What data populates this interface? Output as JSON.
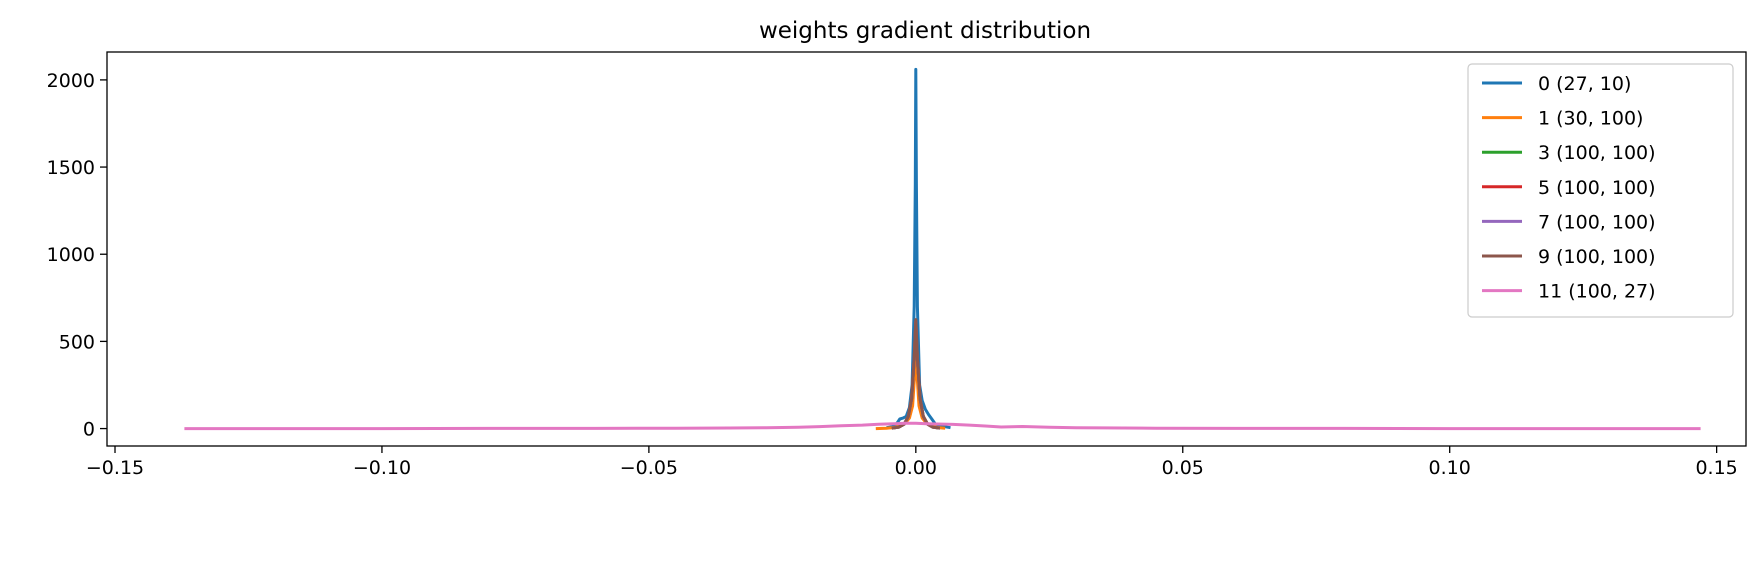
{
  "chart_data": {
    "type": "line",
    "title": "weights gradient distribution",
    "xlabel": "",
    "ylabel": "",
    "xlim": [
      -0.1515,
      0.1555
    ],
    "ylim": [
      -100,
      2160
    ],
    "x_ticks": [
      {
        "value": -0.15,
        "label": "−0.15"
      },
      {
        "value": -0.1,
        "label": "−0.10"
      },
      {
        "value": -0.05,
        "label": "−0.05"
      },
      {
        "value": 0.0,
        "label": "0.00"
      },
      {
        "value": 0.05,
        "label": "0.05"
      },
      {
        "value": 0.1,
        "label": "0.10"
      },
      {
        "value": 0.15,
        "label": "0.15"
      }
    ],
    "y_ticks": [
      {
        "value": 0,
        "label": "0"
      },
      {
        "value": 500,
        "label": "500"
      },
      {
        "value": 1000,
        "label": "1000"
      },
      {
        "value": 1500,
        "label": "1500"
      },
      {
        "value": 2000,
        "label": "2000"
      }
    ],
    "grid": false,
    "legend_position": "top-right",
    "series": [
      {
        "name": "0 (27, 10)",
        "color": "#1f77b4",
        "x": [
          -0.0055,
          -0.0045,
          -0.0038,
          -0.003,
          -0.0024,
          -0.0018,
          -0.0012,
          -0.0007,
          -0.0003,
          -0.0001,
          0.0,
          0.0001,
          0.0003,
          0.0007,
          0.0012,
          0.0018,
          0.0024,
          0.003,
          0.0038,
          0.0046,
          0.0056,
          0.0065
        ],
        "y": [
          5,
          10,
          18,
          55,
          60,
          70,
          120,
          250,
          700,
          1400,
          2060,
          1400,
          700,
          250,
          160,
          110,
          80,
          55,
          20,
          15,
          10,
          5
        ]
      },
      {
        "name": "1 (30, 100)",
        "color": "#ff7f0e",
        "x": [
          -0.0075,
          -0.0055,
          -0.004,
          -0.003,
          -0.002,
          -0.0012,
          -0.0006,
          -0.0002,
          0.0,
          0.0002,
          0.0006,
          0.0012,
          0.002,
          0.003,
          0.004,
          0.0055
        ],
        "y": [
          0,
          2,
          6,
          14,
          30,
          60,
          130,
          320,
          520,
          320,
          130,
          60,
          30,
          14,
          6,
          2
        ]
      },
      {
        "name": "3 (100, 100)",
        "color": "#2ca02c",
        "x": [
          -0.0045,
          -0.0032,
          -0.0022,
          -0.0014,
          -0.0008,
          -0.0003,
          0.0,
          0.0003,
          0.0008,
          0.0014,
          0.0022,
          0.0032,
          0.0045
        ],
        "y": [
          2,
          8,
          25,
          70,
          170,
          400,
          600,
          400,
          170,
          70,
          25,
          8,
          2
        ]
      },
      {
        "name": "5 (100, 100)",
        "color": "#d62728",
        "x": [
          -0.0045,
          -0.0032,
          -0.0022,
          -0.0014,
          -0.0008,
          -0.0003,
          0.0,
          0.0003,
          0.0008,
          0.0014,
          0.0022,
          0.0032,
          0.0045
        ],
        "y": [
          2,
          8,
          25,
          70,
          170,
          400,
          610,
          400,
          170,
          70,
          25,
          8,
          2
        ]
      },
      {
        "name": "7 (100, 100)",
        "color": "#9467bd",
        "x": [
          -0.0045,
          -0.0032,
          -0.0022,
          -0.0014,
          -0.0008,
          -0.0003,
          0.0,
          0.0003,
          0.0008,
          0.0014,
          0.0022,
          0.0032,
          0.0045
        ],
        "y": [
          2,
          8,
          25,
          70,
          170,
          400,
          615,
          400,
          170,
          70,
          25,
          8,
          2
        ]
      },
      {
        "name": "9 (100, 100)",
        "color": "#8c564b",
        "x": [
          -0.0045,
          -0.0032,
          -0.0022,
          -0.0014,
          -0.0008,
          -0.0003,
          0.0,
          0.0003,
          0.0008,
          0.0014,
          0.0022,
          0.0032,
          0.0045
        ],
        "y": [
          2,
          8,
          25,
          70,
          170,
          400,
          625,
          400,
          170,
          70,
          25,
          8,
          2
        ]
      },
      {
        "name": "11 (100, 27)",
        "color": "#e377c2",
        "x": [
          -0.137,
          -0.12,
          -0.1,
          -0.08,
          -0.06,
          -0.045,
          -0.035,
          -0.028,
          -0.022,
          -0.018,
          -0.014,
          -0.01,
          -0.007,
          -0.004,
          -0.002,
          0.0,
          0.002,
          0.004,
          0.007,
          0.01,
          0.013,
          0.016,
          0.02,
          0.025,
          0.03,
          0.035,
          0.045,
          0.06,
          0.08,
          0.1,
          0.12,
          0.147
        ],
        "y": [
          0,
          0,
          0,
          1,
          1,
          2,
          3,
          5,
          8,
          11,
          16,
          20,
          25,
          28,
          30,
          30,
          28,
          26,
          24,
          20,
          15,
          9,
          12,
          7,
          5,
          4,
          2,
          1,
          1,
          0,
          0,
          0
        ]
      }
    ]
  }
}
